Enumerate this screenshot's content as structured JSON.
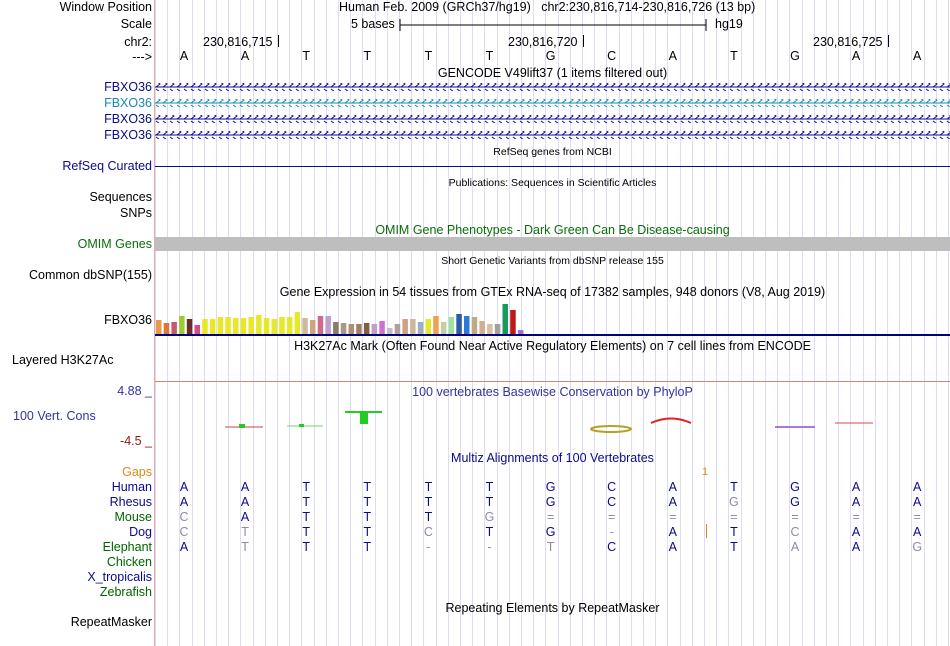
{
  "ruler": {
    "window_label": "Window Position",
    "scale_label": "Scale",
    "chrom_label": "chr2:",
    "strand_label": "--->",
    "assembly": "Human Feb. 2009 (GRCh37/hg19)",
    "position": "chr2:230,816,714-230,816,726 (13 bp)",
    "scale_text": "5 bases",
    "db": "hg19",
    "ticks": [
      "230,816,715",
      "230,816,720",
      "230,816,725"
    ],
    "bases": [
      "A",
      "A",
      "T",
      "T",
      "T",
      "T",
      "G",
      "C",
      "A",
      "T",
      "G",
      "A",
      "A"
    ]
  },
  "gencode": {
    "title": "GENCODE V49lift37 (1 items filtered out)",
    "items": [
      "FBXO36",
      "FBXO36",
      "FBXO36",
      "FBXO36"
    ]
  },
  "refseq": {
    "label": "RefSeq Curated",
    "title": "RefSeq genes from NCBI"
  },
  "publications": {
    "label": "Sequences",
    "title": "Publications: Sequences in Scientific Articles"
  },
  "snps_label": "SNPs",
  "omim": {
    "label": "OMIM Genes",
    "title": "OMIM Gene Phenotypes - Dark Green Can Be Disease-causing"
  },
  "dbsnp": {
    "label": "Common dbSNP(155)",
    "title": "Short Genetic Variants from dbSNP release 155"
  },
  "gtex": {
    "title": "Gene Expression in 54 tissues from GTEx RNA-seq of 17382 samples, 948 donors (V8, Aug 2019)",
    "label": "FBXO36"
  },
  "h3k27ac": {
    "label": "Layered H3K27Ac",
    "title": "H3K27Ac Mark (Often Found Near Active Regulatory Elements) on 7 cell lines from ENCODE"
  },
  "conservation": {
    "label": "100 Vert. Cons",
    "max": "4.88 _",
    "min": "-4.5 _",
    "title": "100 vertebrates Basewise Conservation by PhyloP"
  },
  "multiz": {
    "title": "Multiz Alignments of 100 Vertebrates",
    "gaps_label": "Gaps",
    "gaps_mark": "1",
    "species": [
      {
        "name": "Human",
        "bases": [
          "A",
          "A",
          "T",
          "T",
          "T",
          "T",
          "G",
          "C",
          "A",
          "T",
          "G",
          "A",
          "A"
        ]
      },
      {
        "name": "Rhesus",
        "bases": [
          "A",
          "A",
          "T",
          "T",
          "T",
          "T",
          "G",
          "C",
          "A",
          "G",
          "G",
          "A",
          "A"
        ]
      },
      {
        "name": "Mouse",
        "bases": [
          "C",
          "A",
          "T",
          "T",
          "T",
          "G",
          "=",
          "=",
          "=",
          "=",
          "=",
          "=",
          "="
        ]
      },
      {
        "name": "Dog",
        "bases": [
          "C",
          "T",
          "T",
          "T",
          "C",
          "T",
          "G",
          "-",
          "A",
          "T",
          "C",
          "A",
          "A"
        ]
      },
      {
        "name": "Elephant",
        "bases": [
          "A",
          "T",
          "T",
          "T",
          "-",
          "-",
          "T",
          "C",
          "A",
          "T",
          "A",
          "A",
          "G"
        ]
      },
      {
        "name": "Chicken",
        "bases": []
      },
      {
        "name": "X_tropicalis",
        "bases": []
      },
      {
        "name": "Zebrafish",
        "bases": []
      }
    ]
  },
  "repeatmasker": {
    "label": "RepeatMasker",
    "title": "Repeating Elements by RepeatMasker"
  },
  "colors": {
    "navy": "#000080",
    "label_blue": "#0a0a8c",
    "teal": "#1688b4",
    "green": "#006400",
    "omim_green": "#0a6e0a",
    "gray": "#bebebe",
    "orange": "#d98a1a",
    "cons_blue": "#3232a0",
    "dark_red": "#8b1a1a"
  }
}
